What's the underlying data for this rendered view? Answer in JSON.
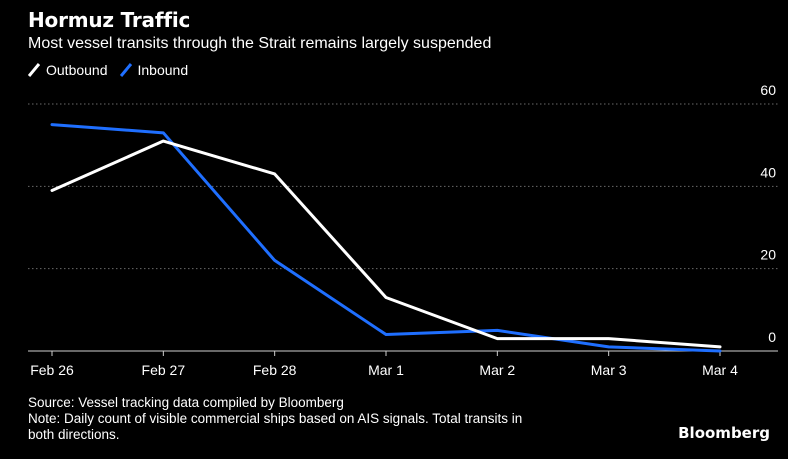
{
  "chart_data": {
    "type": "line",
    "title": "Hormuz Traffic",
    "subtitle": "Most vessel transits through the Strait remains largely suspended",
    "categories": [
      "Feb 26",
      "Feb 27",
      "Feb 28",
      "Mar 1",
      "Mar 2",
      "Mar 3",
      "Mar 4"
    ],
    "series": [
      {
        "name": "Outbound",
        "color": "#ffffff",
        "values": [
          39,
          51,
          43,
          13,
          3,
          3,
          1
        ]
      },
      {
        "name": "Inbound",
        "color": "#1f6fff",
        "values": [
          55,
          53,
          22,
          4,
          5,
          1,
          0
        ]
      }
    ],
    "y_ticks": [
      0,
      20,
      40,
      60
    ],
    "ylim": [
      0,
      60
    ],
    "grid": true,
    "legend_position": "top-left",
    "xlabel": "",
    "ylabel": ""
  },
  "footer": {
    "source": "Source: Vessel tracking data compiled by Bloomberg",
    "note_line1": "Note: Daily count of visible commercial ships based on AIS signals. Total transits in",
    "note_line2": "both directions."
  },
  "brand": "Bloomberg"
}
